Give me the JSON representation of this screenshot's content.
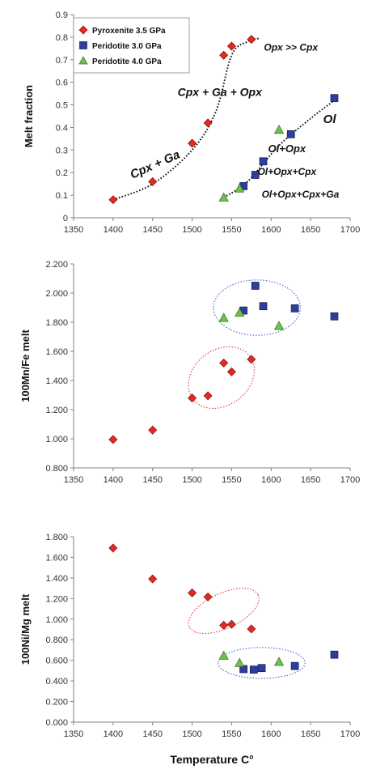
{
  "legend": {
    "pyroxenite": "Pyroxenite 3.5 GPa",
    "peridotite3": "Peridotite 3.0 GPa",
    "peridotite4": "Peridotite 4.0 GPa"
  },
  "colors": {
    "pyroxenite": "#e8281f",
    "peridotite3": "#2e3e9b",
    "peridotite4": "#6cc24a",
    "guide_ellipse": "#e24a4a",
    "guide_ellipse_blue": "#5a6ad0",
    "trend_line": "#111111"
  },
  "markers": {
    "pyroxenite": "diamond",
    "peridotite3": "square",
    "peridotite4": "triangle"
  },
  "chart_data": [
    {
      "type": "scatter",
      "ylabel": "Melt fraction",
      "xlabel": "",
      "xlim": [
        1350,
        1700
      ],
      "ylim": [
        0,
        0.9
      ],
      "xticks": [
        "1350",
        "1400",
        "1450",
        "1500",
        "1550",
        "1600",
        "1650",
        "1700"
      ],
      "yticks": [
        "0",
        "0.1",
        "0.2",
        "0.3",
        "0.4",
        "0.5",
        "0.6",
        "0.7",
        "0.8",
        "0.9"
      ],
      "legend_position": "top-left",
      "series": [
        {
          "name": "Pyroxenite 3.5 GPa",
          "key": "pyroxenite",
          "x": [
            1400,
            1450,
            1500,
            1520,
            1540,
            1550,
            1575
          ],
          "y": [
            0.08,
            0.16,
            0.33,
            0.42,
            0.72,
            0.76,
            0.79
          ]
        },
        {
          "name": "Peridotite 3.0 GPa",
          "key": "peridotite3",
          "x": [
            1565,
            1580,
            1590,
            1625,
            1680
          ],
          "y": [
            0.14,
            0.19,
            0.25,
            0.37,
            0.53
          ]
        },
        {
          "name": "Peridotite 4.0 GPa",
          "key": "peridotite4",
          "x": [
            1540,
            1560,
            1610
          ],
          "y": [
            0.09,
            0.13,
            0.39
          ]
        }
      ],
      "trend_lines": [
        {
          "x": [
            1400,
            1450,
            1500,
            1530,
            1550,
            1570,
            1585
          ],
          "y": [
            0.08,
            0.15,
            0.3,
            0.47,
            0.72,
            0.78,
            0.795
          ]
        },
        {
          "x": [
            1540,
            1570,
            1610,
            1650,
            1680
          ],
          "y": [
            0.09,
            0.16,
            0.32,
            0.44,
            0.52
          ]
        }
      ],
      "annotations": [
        {
          "text": "Cpx + Ga",
          "x": 1455,
          "y": 0.22,
          "angle": -24,
          "size": 15
        },
        {
          "text": "Cpx + Ga + Opx",
          "x": 1535,
          "y": 0.54,
          "angle": 0,
          "size": 14
        },
        {
          "text": "Opx >> Cpx",
          "x": 1625,
          "y": 0.74,
          "angle": 0,
          "size": 12
        },
        {
          "text": "Ol",
          "x": 1674,
          "y": 0.42,
          "angle": 0,
          "size": 15
        },
        {
          "text": "Ol+Opx",
          "x": 1620,
          "y": 0.29,
          "angle": 0,
          "size": 13
        },
        {
          "text": "Ol+Opx+Cpx",
          "x": 1620,
          "y": 0.19,
          "angle": 0,
          "size": 12
        },
        {
          "text": "Ol+Opx+Cpx+Ga",
          "x": 1637,
          "y": 0.09,
          "angle": 0,
          "size": 12
        }
      ]
    },
    {
      "type": "scatter",
      "ylabel": "100Mn/Fe melt",
      "xlabel": "",
      "xlim": [
        1350,
        1700
      ],
      "ylim": [
        0.8,
        2.2
      ],
      "xticks": [
        "1350",
        "1400",
        "1450",
        "1500",
        "1550",
        "1600",
        "1650",
        "1700"
      ],
      "yticks": [
        "0.800",
        "1.000",
        "1.200",
        "1.400",
        "1.600",
        "1.800",
        "2.000",
        "2.200"
      ],
      "series": [
        {
          "name": "Pyroxenite 3.5 GPa",
          "key": "pyroxenite",
          "x": [
            1400,
            1450,
            1500,
            1520,
            1540,
            1550,
            1575
          ],
          "y": [
            0.995,
            1.06,
            1.28,
            1.295,
            1.52,
            1.46,
            1.545
          ]
        },
        {
          "name": "Peridotite 3.0 GPa",
          "key": "peridotite3",
          "x": [
            1565,
            1580,
            1590,
            1630,
            1680
          ],
          "y": [
            1.88,
            2.05,
            1.91,
            1.895,
            1.84
          ]
        },
        {
          "name": "Peridotite 4.0 GPa",
          "key": "peridotite4",
          "x": [
            1540,
            1560,
            1610
          ],
          "y": [
            1.83,
            1.865,
            1.775
          ]
        }
      ],
      "ellipses": [
        {
          "cx": 1537,
          "cy": 1.42,
          "rx": 45,
          "ry": 0.19,
          "angle": -37,
          "color_key": "guide_ellipse"
        },
        {
          "cx": 1582,
          "cy": 1.9,
          "rx": 55,
          "ry": 0.19,
          "angle": 0,
          "color_key": "guide_ellipse_blue"
        }
      ]
    },
    {
      "type": "scatter",
      "ylabel": "100Ni/Mg melt",
      "xlabel": "Temperature C°",
      "xlim": [
        1350,
        1700
      ],
      "ylim": [
        0,
        1.8
      ],
      "xticks": [
        "1350",
        "1400",
        "1450",
        "1500",
        "1550",
        "1600",
        "1650",
        "1700"
      ],
      "yticks": [
        "0.000",
        "0.200",
        "0.400",
        "0.600",
        "0.800",
        "1.000",
        "1.200",
        "1.400",
        "1.600",
        "1.800"
      ],
      "series": [
        {
          "name": "Pyroxenite 3.5 GPa",
          "key": "pyroxenite",
          "x": [
            1400,
            1450,
            1500,
            1520,
            1540,
            1550,
            1575
          ],
          "y": [
            1.69,
            1.39,
            1.255,
            1.215,
            0.94,
            0.95,
            0.905
          ]
        },
        {
          "name": "Peridotite 3.0 GPa",
          "key": "peridotite3",
          "x": [
            1565,
            1578,
            1588,
            1630,
            1680
          ],
          "y": [
            0.515,
            0.51,
            0.525,
            0.545,
            0.655
          ]
        },
        {
          "name": "Peridotite 4.0 GPa",
          "key": "peridotite4",
          "x": [
            1540,
            1560,
            1610
          ],
          "y": [
            0.645,
            0.575,
            0.585
          ]
        }
      ],
      "ellipses": [
        {
          "cx": 1540,
          "cy": 1.08,
          "rx": 48,
          "ry": 0.17,
          "angle": -25,
          "color_key": "guide_ellipse"
        },
        {
          "cx": 1588,
          "cy": 0.575,
          "rx": 55,
          "ry": 0.15,
          "angle": 0,
          "color_key": "guide_ellipse_blue"
        }
      ]
    }
  ]
}
